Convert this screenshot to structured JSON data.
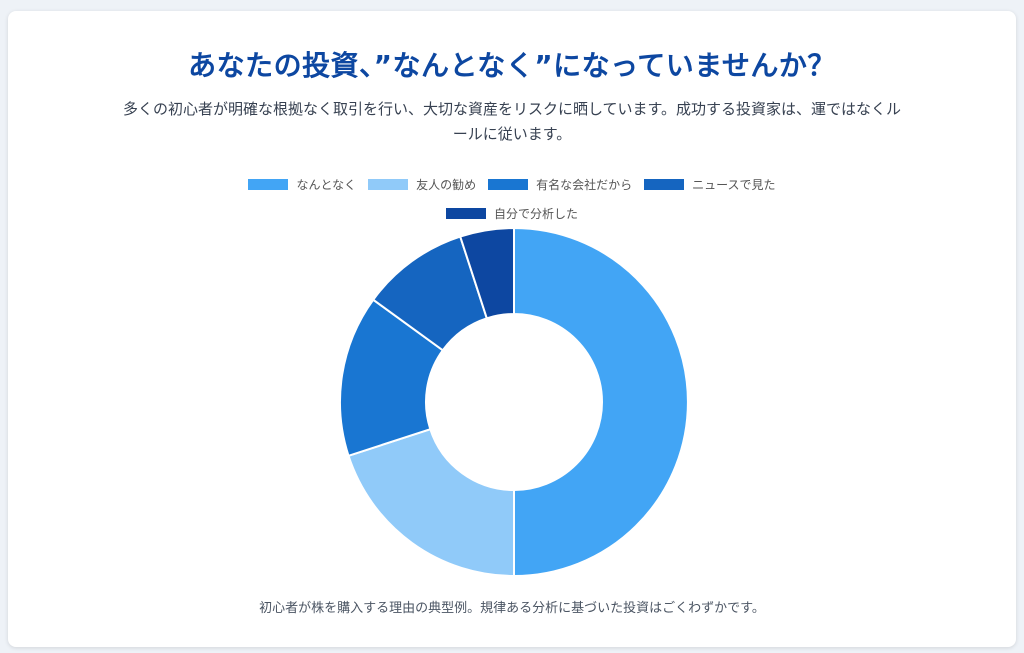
{
  "header": {
    "title": "あなたの投資、”なんとなく”になっていませんか？",
    "subtitle": "多くの初心者が明確な根拠なく取引を行い、大切な資産をリスクに晒しています。成功する投資家は、運ではなくルールに従います。"
  },
  "caption": "初心者が株を購入する理由の典型例。規律ある分析に基づいた投資はごくわずかです。",
  "chart_data": {
    "type": "pie",
    "variant": "doughnut",
    "title": "",
    "legend_position": "top",
    "categories": [
      "なんとなく",
      "友人の勧め",
      "有名な会社だから",
      "ニュースで見た",
      "自分で分析した"
    ],
    "values": [
      50,
      20,
      15,
      10,
      5
    ],
    "colors": [
      "#42a5f5",
      "#90caf9",
      "#1976d2",
      "#1565c0",
      "#0d47a1"
    ]
  }
}
